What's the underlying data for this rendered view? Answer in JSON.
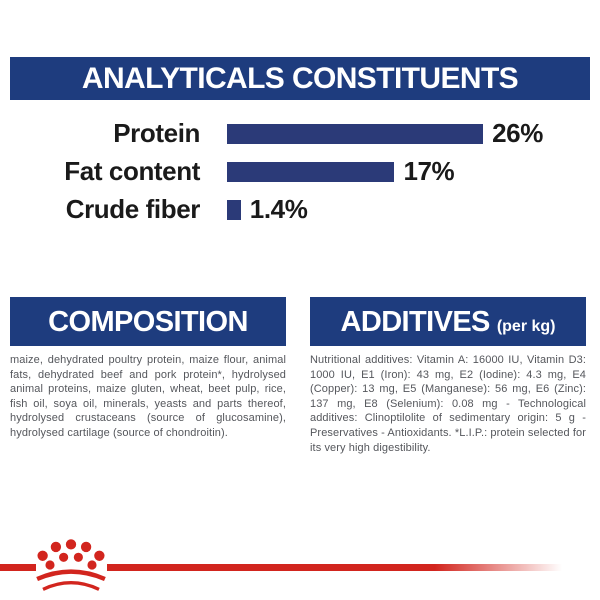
{
  "theme": {
    "navy_header": "#1e3c7e",
    "navy_bar": "#2b3a78",
    "red_accent": "#d2251e",
    "body_text_gray": "#55575c",
    "label_black": "#1a1a1a",
    "background": "#ffffff"
  },
  "analyticals": {
    "title": "ANALYTICALS CONSTITUENTS"
  },
  "chart_data": {
    "type": "bar",
    "orientation": "horizontal",
    "title": "ANALYTICALS CONSTITUENTS",
    "categories": [
      "Protein",
      "Fat content",
      "Crude fiber"
    ],
    "values": [
      26,
      17,
      1.4
    ],
    "value_labels": [
      "26%",
      "17%",
      "1.4%"
    ],
    "unit": "%",
    "xlim": [
      0,
      26
    ],
    "grid": false,
    "legend": false,
    "bar_color": "#2b3a78"
  },
  "composition": {
    "title": "COMPOSITION",
    "body": "maize, dehydrated poultry protein, maize flour, animal fats, dehydrated beef and pork protein*, hydrolysed animal proteins, maize gluten, wheat, beet pulp, rice, fish oil, soya oil, minerals, yeasts and parts thereof, hydrolysed crustaceans (source of glucosamine), hydrolysed cartilage (source of chondroitin)."
  },
  "additives": {
    "title": "ADDITIVES",
    "title_suffix": "(per kg)",
    "body": "Nutritional additives: Vitamin A: 16000 IU, Vitamin D3: 1000 IU, E1 (Iron): 43 mg, E2 (Iodine): 4.3 mg, E4 (Copper): 13 mg, E5 (Manganese): 56 mg, E6 (Zinc): 137 mg, E8 (Selenium): 0.08 mg - Technological additives: Clinoptilolite of sedimentary origin: 5 g - Preservatives - Antioxidants. *L.I.P.: protein selected for its very high digestibility."
  },
  "footer": {
    "brand_mark": "royal-canin-crown-logo"
  }
}
